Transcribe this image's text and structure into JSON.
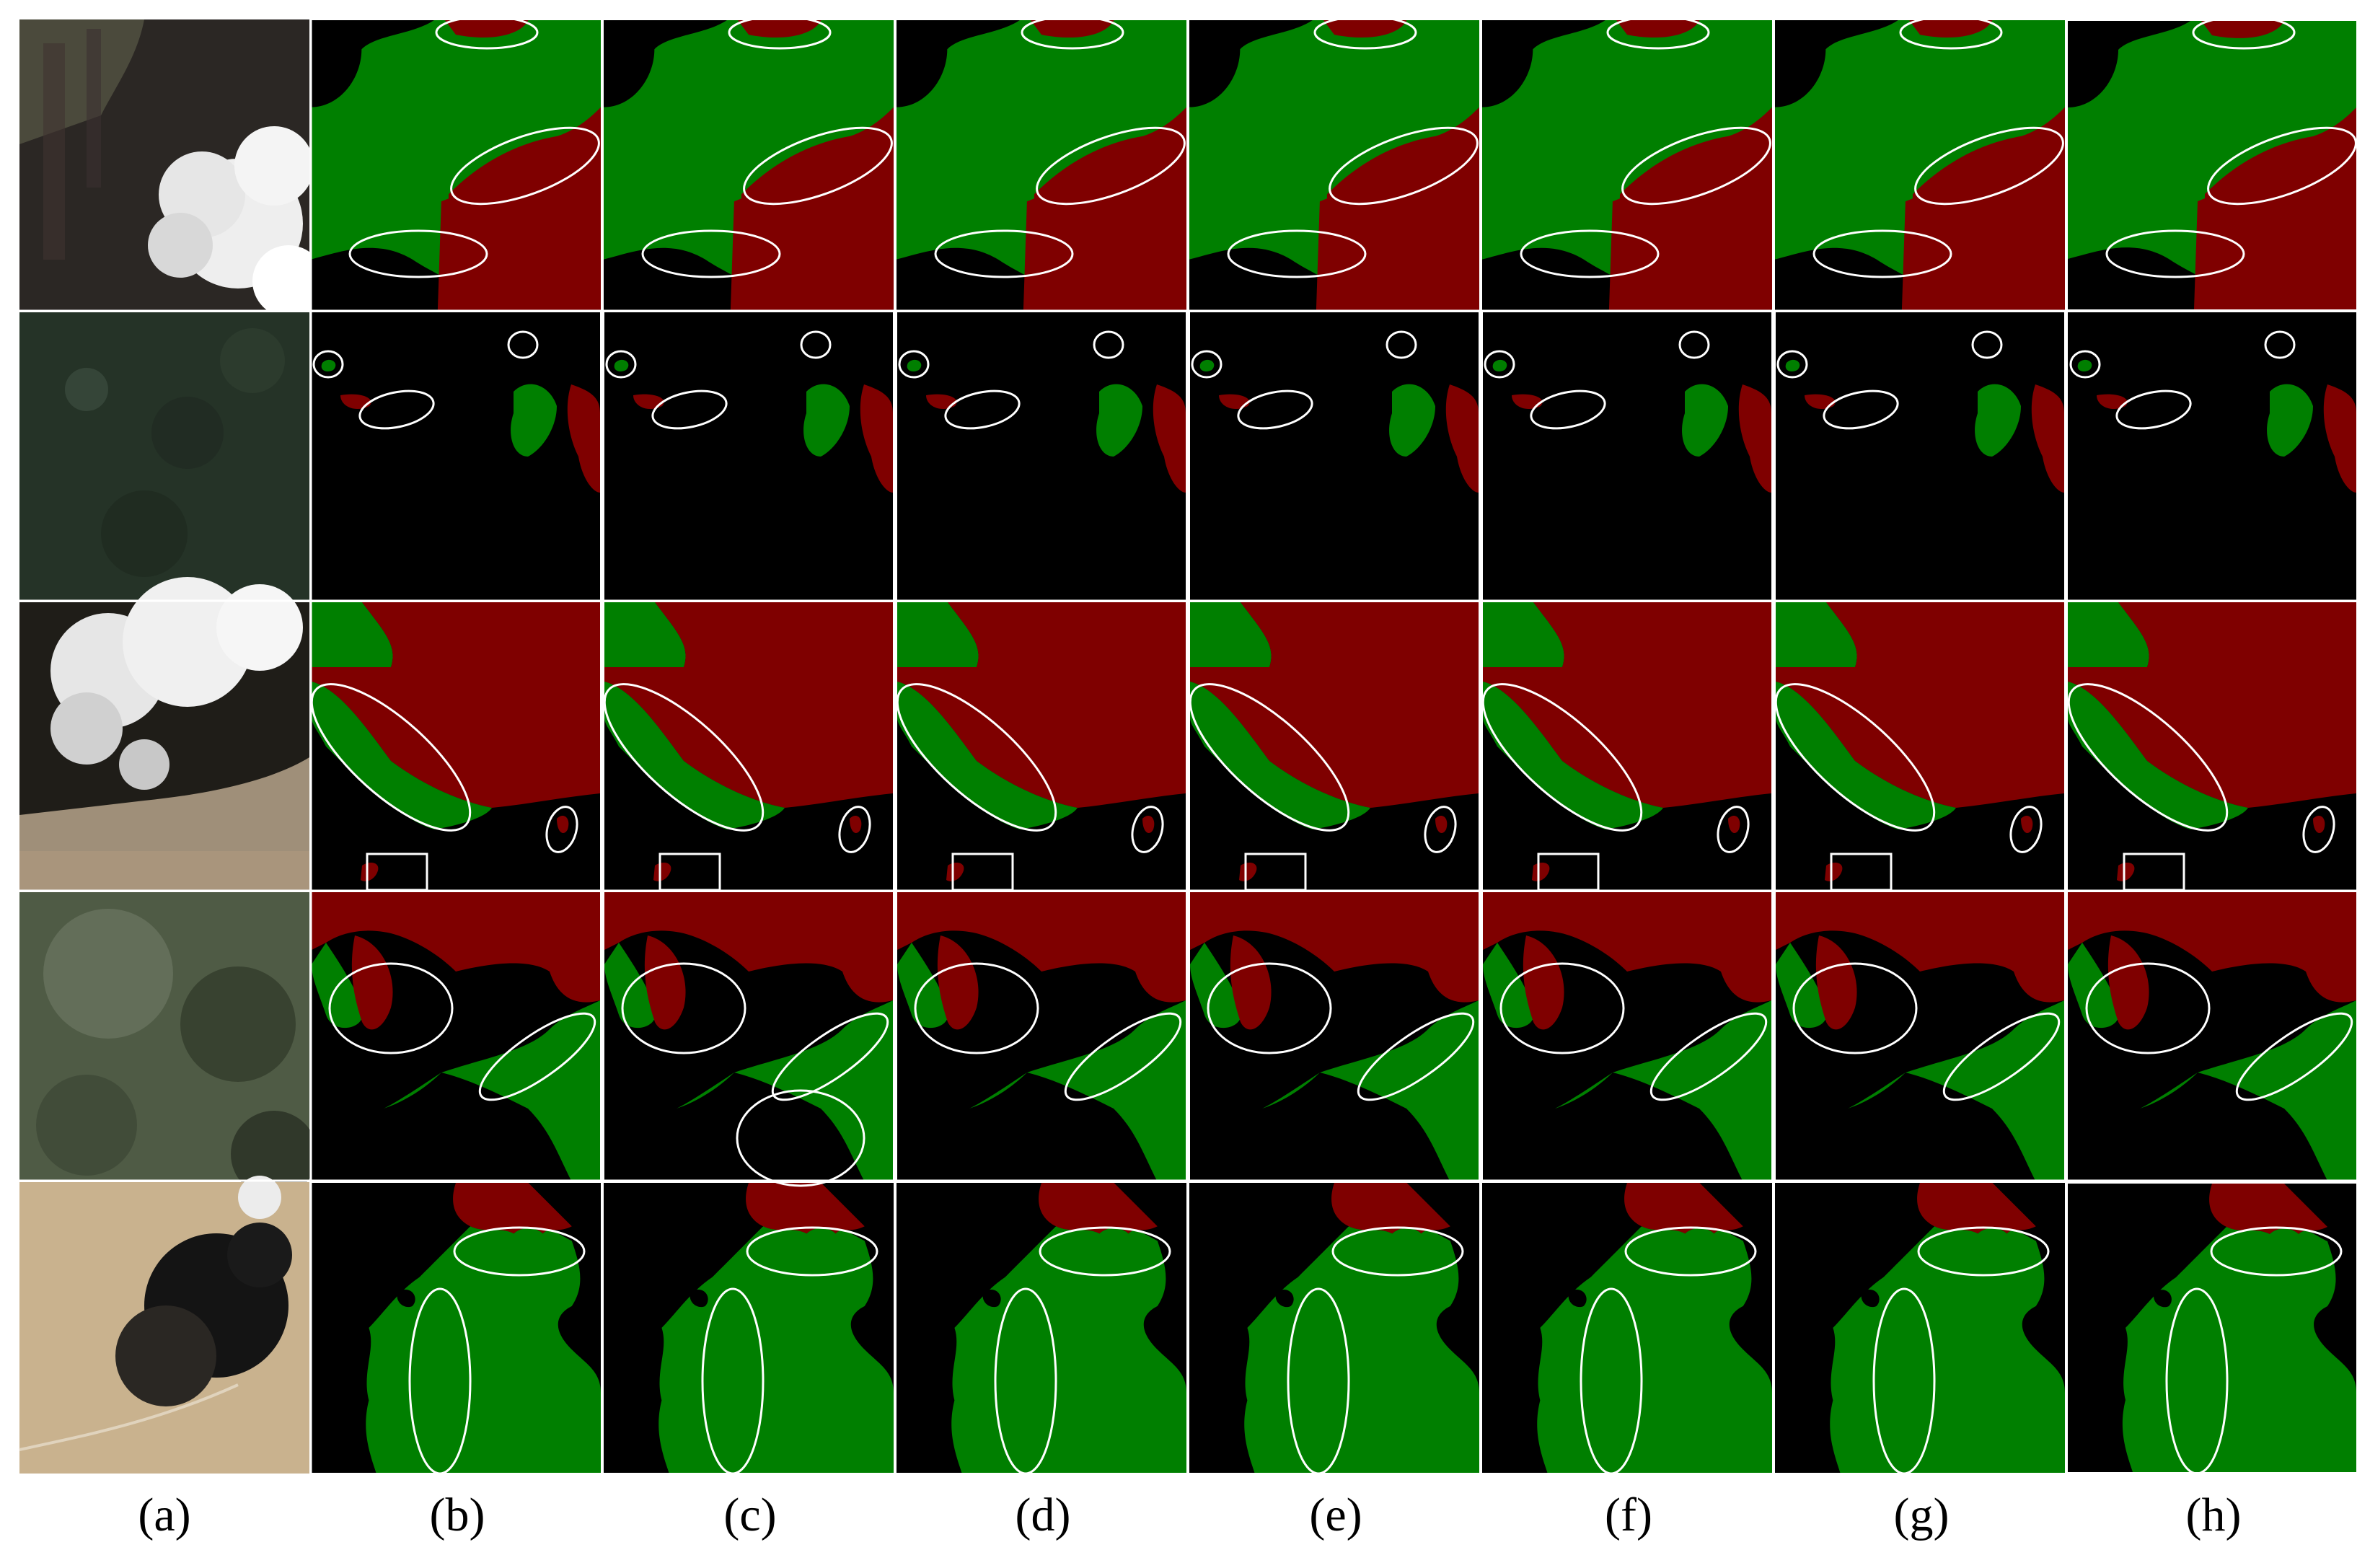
{
  "figure": {
    "column_labels": [
      "(a)",
      "(b)",
      "(c)",
      "(d)",
      "(e)",
      "(f)",
      "(g)",
      "(h)"
    ],
    "row_count": 5,
    "legend_colors": {
      "green_class": "#007f00",
      "red_class": "#7f0000",
      "background": "#000000",
      "highlight": "#ffffff"
    }
  }
}
